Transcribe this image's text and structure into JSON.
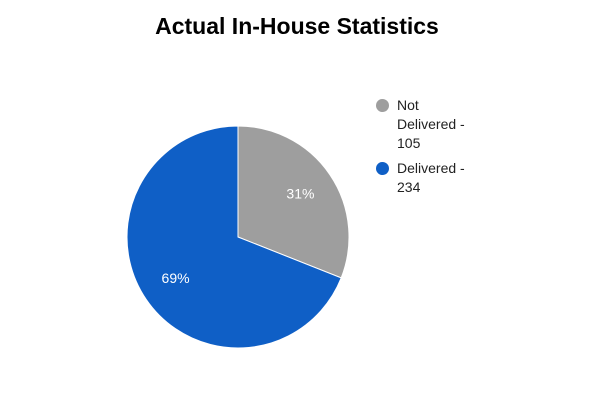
{
  "chart_data": {
    "type": "pie",
    "title": "Actual In-House Statistics",
    "categories": [
      "Not Delivered - 105",
      "Delivered - 234"
    ],
    "values": [
      31,
      69
    ],
    "value_labels": [
      "31%",
      "69%"
    ],
    "colors": [
      "#9e9e9e",
      "#0f5fc6"
    ],
    "legend": "right"
  }
}
